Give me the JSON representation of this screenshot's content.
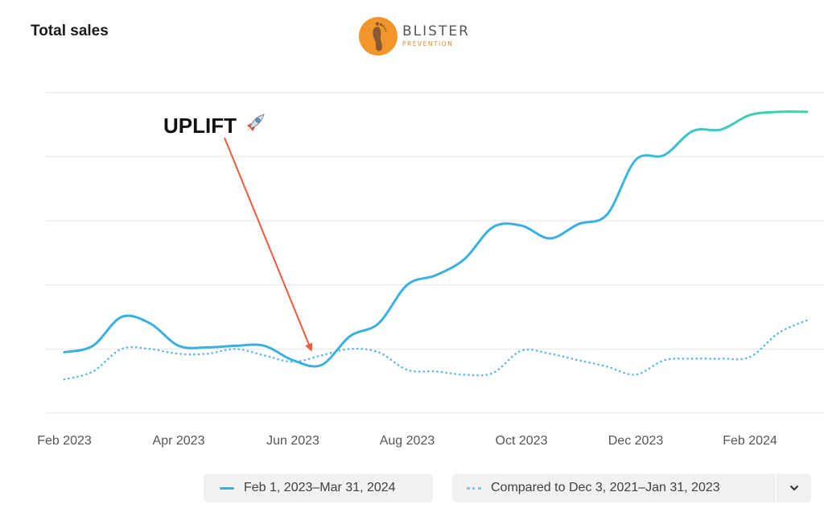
{
  "header": {
    "title": "Total sales",
    "logo": {
      "main": "BLISTER",
      "sub": "PREVENTION"
    }
  },
  "annotation": {
    "label": "UPLIFT",
    "emoji_icon": "rocket-icon"
  },
  "legend": {
    "primary_label": "Feb 1, 2023–Mar 31, 2024",
    "comparison_label": "Compared to Dec 3, 2021–Jan 31, 2023"
  },
  "colors": {
    "primary_line": "#3ab0e2",
    "primary_line_end": "#3ed3a5",
    "comparison_line": "#5bb8e6",
    "annotation_arrow": "#ee5a3a",
    "grid": "#e6e6e6",
    "accent_logo": "#f0962a"
  },
  "chart_data": {
    "type": "line",
    "title": "Total sales",
    "xlabel": "",
    "ylabel": "",
    "x_ticks": [
      "Feb 2023",
      "Apr 2023",
      "Jun 2023",
      "Aug 2023",
      "Oct 2023",
      "Dec 2023",
      "Feb 2024"
    ],
    "x": [
      0,
      0.25,
      0.5,
      0.75,
      1,
      1.25,
      1.5,
      1.75,
      2,
      2.25,
      2.5,
      2.75,
      3,
      3.25,
      3.5,
      3.75,
      4,
      4.25,
      4.5,
      4.75,
      5,
      5.25,
      5.5,
      5.75,
      6,
      6.25,
      6.5
    ],
    "xlim": [
      0,
      6.5
    ],
    "ylim": [
      0,
      100
    ],
    "grid": true,
    "series": [
      {
        "name": "Feb 1, 2023–Mar 31, 2024",
        "style": "solid",
        "values": [
          19,
          21,
          30,
          28,
          21,
          20.5,
          21,
          21,
          16.5,
          15,
          24,
          28,
          40,
          43,
          48,
          58,
          58.5,
          54.5,
          59,
          62,
          79,
          80.5,
          88,
          88.5,
          93,
          94,
          94
        ]
      },
      {
        "name": "Compared to Dec 3, 2021–Jan 31, 2023",
        "style": "dotted",
        "values": [
          10.5,
          13,
          20,
          20,
          18.5,
          18.5,
          20,
          18,
          16,
          18,
          20,
          19,
          13.5,
          13,
          12,
          12.5,
          19.5,
          18.5,
          16.5,
          14.5,
          12,
          16.5,
          17,
          17,
          17.5,
          25,
          29
        ]
      }
    ]
  }
}
